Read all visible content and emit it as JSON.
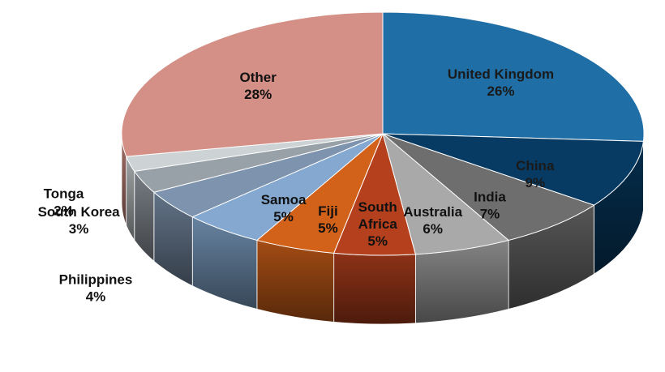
{
  "chart_data": {
    "type": "pie",
    "title": "",
    "categories": [
      "United Kingdom",
      "China",
      "India",
      "Australia",
      "South Africa",
      "Fiji",
      "Samoa",
      "Philippines",
      "South Korea",
      "Tonga",
      "Other"
    ],
    "values": [
      26,
      9,
      7,
      6,
      5,
      5,
      5,
      4,
      3,
      2,
      28
    ],
    "value_labels": [
      "26%",
      "9%",
      "7%",
      "6%",
      "5%",
      "5%",
      "5%",
      "4%",
      "3%",
      "2%",
      "28%"
    ],
    "label_lines": [
      [
        "United Kingdom"
      ],
      [
        "China"
      ],
      [
        "India"
      ],
      [
        "Australia"
      ],
      [
        "South",
        "Africa"
      ],
      [
        "Fiji"
      ],
      [
        "Samoa"
      ],
      [
        "Philippines"
      ],
      [
        "South Korea"
      ],
      [
        "Tonga"
      ],
      [
        "Other"
      ]
    ],
    "colors": [
      "#1f6ea5",
      "#073b63",
      "#6e6e6e",
      "#a9a9a9",
      "#b5401d",
      "#d2611a",
      "#84a8cf",
      "#7e93ad",
      "#98a0a8",
      "#cdd2d4",
      "#d48f86"
    ],
    "label_colors": [
      "#1a1a1a",
      "#1a1a1a",
      "#111111",
      "#111111",
      "#111111",
      "#111111",
      "#111111",
      "#111111",
      "#111111",
      "#111111",
      "#111111"
    ],
    "outside_labels": [
      "Philippines",
      "South Korea",
      "Tonga"
    ],
    "style": "3d",
    "legend": "none"
  }
}
